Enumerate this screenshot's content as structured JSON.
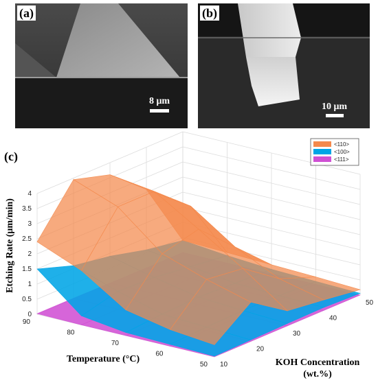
{
  "panels": {
    "a": {
      "tag": "(a)",
      "scale": "8 μm"
    },
    "b": {
      "tag": "(b)",
      "scale": "10 μm"
    },
    "c": {
      "tag": "(c)"
    }
  },
  "colors": {
    "s110": "#f4894c",
    "s100": "#00a5e6",
    "s111": "#d050d4"
  },
  "chart_data": {
    "type": "surface",
    "xlabel": "KOH Concentration\n(wt.%)",
    "ylabel": "Temperature (°C)",
    "zlabel": "Etching Rate (μm/min)",
    "x": [
      10,
      20,
      30,
      40,
      50
    ],
    "y": [
      50,
      60,
      70,
      80,
      90
    ],
    "xticks": [
      "10",
      "20",
      "30",
      "40",
      "50"
    ],
    "yticks": [
      "50",
      "60",
      "70",
      "80",
      "90"
    ],
    "zticks": [
      "0",
      "0.5",
      "1",
      "1.5",
      "2",
      "2.5",
      "3",
      "3.5",
      "4"
    ],
    "xlim": [
      10,
      50
    ],
    "ylim": [
      50,
      90
    ],
    "zlim": [
      0,
      4
    ],
    "grid": true,
    "legend_position": "top-right",
    "series": [
      {
        "name": "<110>",
        "color": "#f4894c",
        "values": [
          [
            0.4,
            1.3,
            0.5,
            0.35,
            0.18
          ],
          [
            0.55,
            1.7,
            1.55,
            0.7,
            0.25
          ],
          [
            0.85,
            2.2,
            2.5,
            1.4,
            0.3
          ],
          [
            1.8,
            3.4,
            3.4,
            2.4,
            0.35
          ],
          [
            2.4,
            3.95,
            3.6,
            2.6,
            0.4
          ]
        ]
      },
      {
        "name": "<100>",
        "color": "#00a5e6",
        "values": [
          [
            0.02,
            0.05,
            0.08,
            0.1,
            0.06
          ],
          [
            0.06,
            0.12,
            0.16,
            0.14,
            0.1
          ],
          [
            0.1,
            0.2,
            0.25,
            0.2,
            0.15
          ],
          [
            0.3,
            0.6,
            0.55,
            0.4,
            0.25
          ],
          [
            1.5,
            1.1,
            0.9,
            0.6,
            0.4
          ]
        ]
      },
      {
        "name": "<111>",
        "color": "#d050d4",
        "values": [
          [
            0.0,
            0.0,
            0.0,
            0.0,
            0.0
          ],
          [
            0.0,
            0.0,
            0.0,
            0.0,
            0.0
          ],
          [
            0.0,
            0.0,
            0.0,
            0.0,
            0.0
          ],
          [
            0.0,
            0.01,
            0.01,
            0.0,
            0.0
          ],
          [
            0.02,
            0.02,
            0.01,
            0.0,
            0.0
          ]
        ]
      }
    ]
  }
}
